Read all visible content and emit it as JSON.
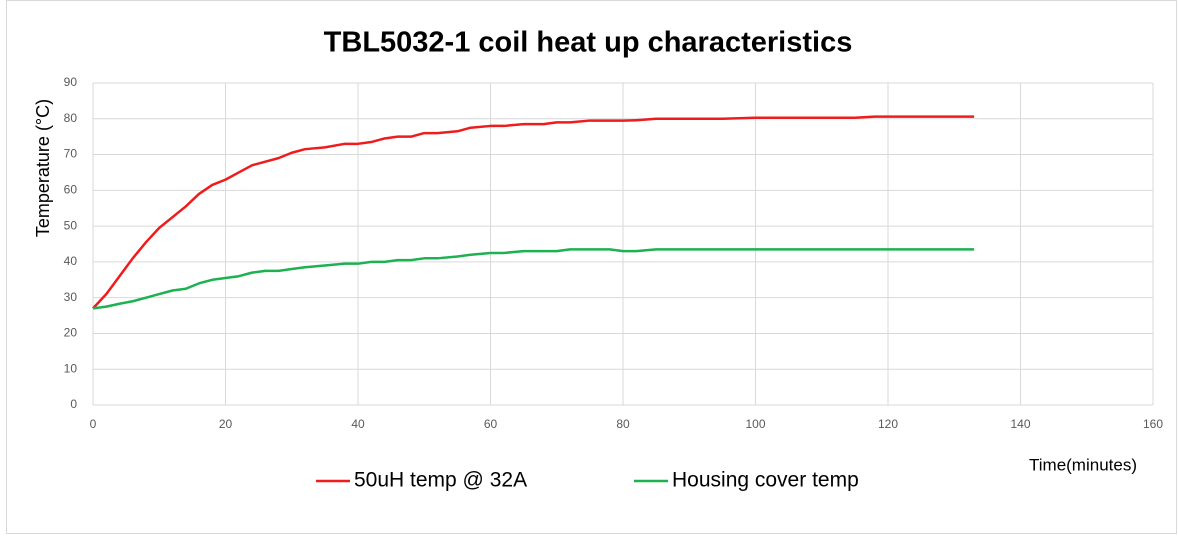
{
  "chart_data": {
    "type": "line",
    "title": "TBL5032-1 coil heat up characteristics",
    "y_label": "Temperature (°C)",
    "x_label": "Time(minutes)",
    "x": [
      0,
      2,
      4,
      6,
      8,
      10,
      12,
      14,
      16,
      18,
      20,
      22,
      24,
      26,
      28,
      30,
      32,
      35,
      38,
      40,
      42,
      44,
      46,
      48,
      50,
      52,
      55,
      57,
      60,
      62,
      65,
      68,
      70,
      72,
      75,
      78,
      80,
      82,
      85,
      90,
      95,
      100,
      110,
      115,
      118,
      125,
      133
    ],
    "series": [
      {
        "name": "50uH temp @ 32A",
        "color": "#ee1c1c",
        "values": [
          27,
          31,
          36,
          41,
          45.5,
          49.5,
          52.5,
          55.5,
          59,
          61.5,
          63,
          65,
          67,
          68,
          69,
          70.5,
          71.5,
          72,
          73,
          73,
          73.5,
          74.5,
          75,
          75,
          76,
          76,
          76.5,
          77.5,
          78,
          78,
          78.5,
          78.5,
          79,
          79,
          79.5,
          79.5,
          79.5,
          79.6,
          80,
          80,
          80,
          80.3,
          80.3,
          80.3,
          80.6,
          80.6,
          80.6
        ]
      },
      {
        "name": "Housing cover temp",
        "color": "#1db152",
        "values": [
          27,
          27.5,
          28.3,
          29,
          30,
          31,
          32,
          32.5,
          34,
          35,
          35.5,
          36,
          37,
          37.5,
          37.5,
          38,
          38.5,
          39,
          39.5,
          39.5,
          40,
          40,
          40.5,
          40.5,
          41,
          41,
          41.5,
          42,
          42.5,
          42.5,
          43,
          43,
          43,
          43.5,
          43.5,
          43.5,
          43,
          43,
          43.5,
          43.5,
          43.5,
          43.5,
          43.5,
          43.5,
          43.5,
          43.5,
          43.5
        ]
      }
    ],
    "xlim": [
      0,
      160
    ],
    "xticks": [
      0,
      20,
      40,
      60,
      80,
      100,
      120,
      140,
      160
    ],
    "ylim": [
      0,
      90
    ],
    "yticks": [
      0,
      10,
      20,
      30,
      40,
      50,
      60,
      70,
      80,
      90
    ],
    "grid": true,
    "legend": "bottom"
  }
}
